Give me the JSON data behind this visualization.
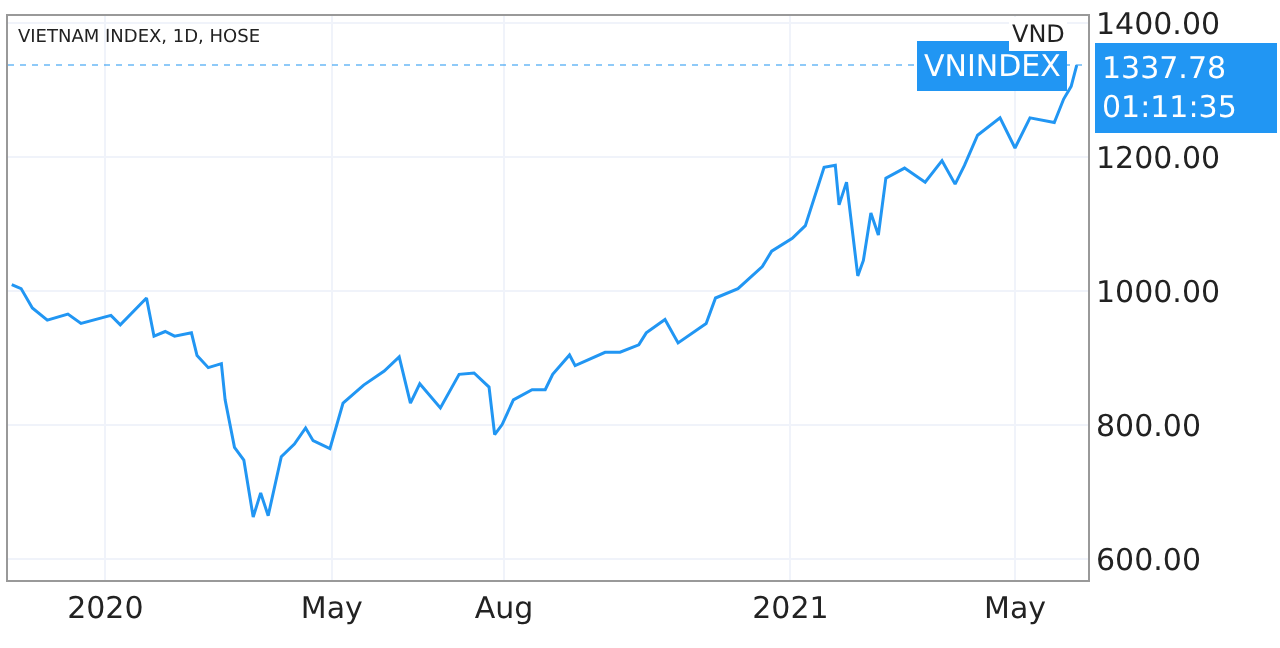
{
  "chart_data": {
    "type": "line",
    "title": "VIETNAM INDEX, 1D, HOSE",
    "x": [
      "2019-11-12",
      "2019-11-17",
      "2019-11-23",
      "2019-12-01",
      "2019-12-12",
      "2019-12-19",
      "2020-01-04",
      "2020-01-09",
      "2020-01-23",
      "2020-01-27",
      "2020-02-02",
      "2020-02-07",
      "2020-02-16",
      "2020-02-19",
      "2020-02-25",
      "2020-03-03",
      "2020-03-05",
      "2020-03-10",
      "2020-03-15",
      "2020-03-20",
      "2020-03-24",
      "2020-03-28",
      "2020-04-04",
      "2020-04-11",
      "2020-04-17",
      "2020-04-21",
      "2020-04-30",
      "2020-05-07",
      "2020-05-18",
      "2020-05-29",
      "2020-06-06",
      "2020-06-12",
      "2020-06-17",
      "2020-06-28",
      "2020-07-08",
      "2020-07-16",
      "2020-07-24",
      "2020-07-27",
      "2020-07-31",
      "2020-08-06",
      "2020-08-16",
      "2020-08-23",
      "2020-08-27",
      "2020-09-05",
      "2020-09-08",
      "2020-09-24",
      "2020-10-02",
      "2020-10-12",
      "2020-10-16",
      "2020-10-26",
      "2020-11-02",
      "2020-11-17",
      "2020-11-22",
      "2020-12-04",
      "2020-12-17",
      "2020-12-22",
      "2021-01-02",
      "2021-01-09",
      "2021-01-19",
      "2021-01-25",
      "2021-01-27",
      "2021-01-31",
      "2021-02-06",
      "2021-02-09",
      "2021-02-13",
      "2021-02-17",
      "2021-02-21",
      "2021-03-03",
      "2021-03-14",
      "2021-03-23",
      "2021-03-30",
      "2021-04-04",
      "2021-04-11",
      "2021-04-23",
      "2021-05-01",
      "2021-05-09",
      "2021-05-22",
      "2021-05-27",
      "2021-05-31",
      "2021-06-03"
    ],
    "series": [
      {
        "name": "VNINDEX",
        "color": "#2196f3",
        "values": [
          1010,
          1004,
          975,
          957,
          966,
          952,
          964,
          950,
          990,
          933,
          940,
          933,
          938,
          904,
          886,
          892,
          838,
          767,
          748,
          663,
          699,
          665,
          753,
          772,
          796,
          777,
          765,
          833,
          860,
          881,
          902,
          833,
          862,
          826,
          876,
          878,
          857,
          786,
          801,
          838,
          853,
          853,
          876,
          905,
          889,
          909,
          909,
          920,
          938,
          958,
          923,
          952,
          990,
          1004,
          1037,
          1060,
          1079,
          1098,
          1185,
          1188,
          1129,
          1163,
          1023,
          1046,
          1117,
          1084,
          1169,
          1184,
          1163,
          1195,
          1160,
          1188,
          1233,
          1259,
          1214,
          1259,
          1252,
          1287,
          1306,
          1337.78
        ]
      }
    ],
    "xlim": [
      "2019-11-10",
      "2021-06-09"
    ],
    "xticks": [
      {
        "value": "2020-01-01",
        "label": "2020"
      },
      {
        "value": "2020-05-01",
        "label": "May"
      },
      {
        "value": "2020-08-01",
        "label": "Aug"
      },
      {
        "value": "2021-01-01",
        "label": "2021"
      },
      {
        "value": "2021-05-01",
        "label": "May"
      }
    ],
    "ylim": [
      569,
      1411
    ],
    "yticks": [
      {
        "value": 600,
        "label": "600.00"
      },
      {
        "value": 800,
        "label": "800.00"
      },
      {
        "value": 1000,
        "label": "1000.00"
      },
      {
        "value": 1200,
        "label": "1200.00"
      },
      {
        "value": 1400,
        "label": "1400.00"
      }
    ],
    "ref_lines": [
      {
        "axis": "y",
        "value": 1337.78,
        "label": "1337.78",
        "color": "#2196f3",
        "line_style": "dotted"
      }
    ],
    "annotations": [
      "01:11:35",
      "VND"
    ],
    "grid": true,
    "legend": false,
    "marker": "none",
    "line_style": "solid"
  }
}
